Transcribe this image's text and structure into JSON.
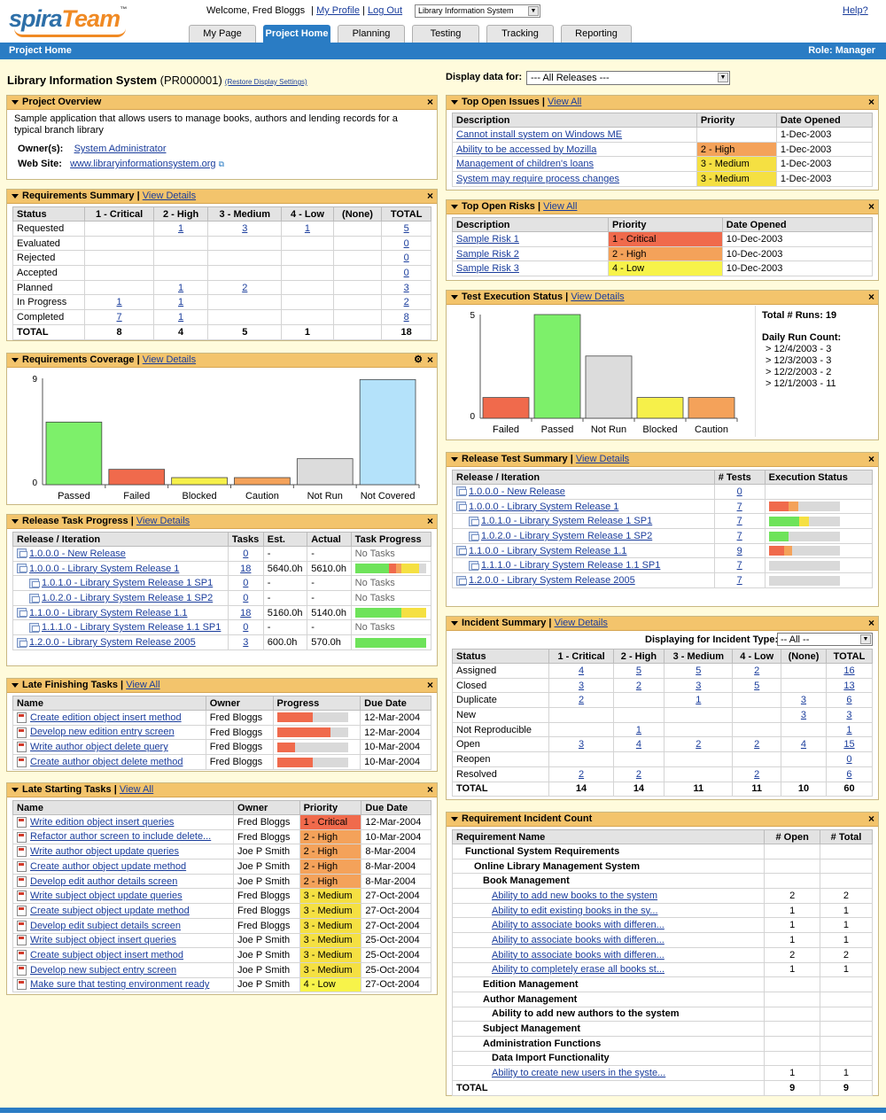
{
  "brand": {
    "a": "spira",
    "b": "Team",
    "tm": "™"
  },
  "header": {
    "welcome": "Welcome, Fred Bloggs",
    "my_profile": "My Profile",
    "log_out": "Log Out",
    "project_select": "Library Information System",
    "help": "Help?"
  },
  "tabs": [
    "My Page",
    "Project Home",
    "Planning",
    "Testing",
    "Tracking",
    "Reporting"
  ],
  "bar": {
    "left": "Project Home",
    "right": "Role: Manager"
  },
  "project": {
    "name": "Library Information System",
    "code": "(PR000001)",
    "restore": "(Restore Display Settings)"
  },
  "display": {
    "label": "Display data for:",
    "value": "--- All Releases ---"
  },
  "view_all": "View All",
  "view_details": "View Details",
  "overview": {
    "title": "Project Overview",
    "description": "Sample application that allows users to manage books, authors and lending records for a typical branch library",
    "owners_label": "Owner(s):",
    "owner": "System Administrator",
    "website_label": "Web Site:",
    "website": "www.libraryinformationsystem.org"
  },
  "req_summary": {
    "title": "Requirements Summary",
    "cols": [
      "Status",
      "1 - Critical",
      "2 - High",
      "3 - Medium",
      "4 - Low",
      "(None)",
      "TOTAL"
    ],
    "rows": [
      [
        "Requested",
        "",
        "1",
        "3",
        "1",
        "",
        "5"
      ],
      [
        "Evaluated",
        "",
        "",
        "",
        "",
        "",
        "0"
      ],
      [
        "Rejected",
        "",
        "",
        "",
        "",
        "",
        "0"
      ],
      [
        "Accepted",
        "",
        "",
        "",
        "",
        "",
        "0"
      ],
      [
        "Planned",
        "",
        "1",
        "2",
        "",
        "",
        "3"
      ],
      [
        "In Progress",
        "1",
        "1",
        "",
        "",
        "",
        "2"
      ],
      [
        "Completed",
        "7",
        "1",
        "",
        "",
        "",
        "8"
      ]
    ],
    "total": [
      "TOTAL",
      "8",
      "4",
      "5",
      "1",
      "",
      "18"
    ]
  },
  "req_coverage": {
    "title": "Requirements Coverage"
  },
  "release_tasks": {
    "title": "Release Task Progress",
    "cols": [
      "Release / Iteration",
      "Tasks",
      "Est.",
      "Actual",
      "Task Progress"
    ],
    "rows": [
      {
        "name": "1.0.0.0 - New Release",
        "level": 0,
        "tasks": "0",
        "est": "-",
        "actual": "-",
        "progress": "No Tasks"
      },
      {
        "name": "1.0.0.0 - Library System Release 1",
        "level": 0,
        "tasks": "18",
        "est": "5640.0h",
        "actual": "5610.0h",
        "segs": [
          {
            "c": "#6ee35a",
            "w": 0.48
          },
          {
            "c": "#f06a4c",
            "w": 0.1
          },
          {
            "c": "#f4a25a",
            "w": 0.08
          },
          {
            "c": "#f5e042",
            "w": 0.25
          }
        ]
      },
      {
        "name": "1.0.1.0 - Library System Release 1 SP1",
        "level": 1,
        "tasks": "0",
        "est": "-",
        "actual": "-",
        "progress": "No Tasks"
      },
      {
        "name": "1.0.2.0 - Library System Release 1 SP2",
        "level": 1,
        "tasks": "0",
        "est": "-",
        "actual": "-",
        "progress": "No Tasks"
      },
      {
        "name": "1.1.0.0 - Library System Release 1.1",
        "level": 0,
        "tasks": "18",
        "est": "5160.0h",
        "actual": "5140.0h",
        "segs": [
          {
            "c": "#6ee35a",
            "w": 0.66
          },
          {
            "c": "#f5e042",
            "w": 0.34
          }
        ]
      },
      {
        "name": "1.1.1.0 - Library System Release 1.1 SP1",
        "level": 1,
        "tasks": "0",
        "est": "-",
        "actual": "-",
        "progress": "No Tasks"
      },
      {
        "name": "1.2.0.0 - Library System Release 2005",
        "level": 0,
        "tasks": "3",
        "est": "600.0h",
        "actual": "570.0h",
        "segs": [
          {
            "c": "#6ee35a",
            "w": 1.0
          }
        ]
      }
    ]
  },
  "late_finishing": {
    "title": "Late Finishing Tasks",
    "cols": [
      "Name",
      "Owner",
      "Progress",
      "Due Date"
    ],
    "rows": [
      {
        "name": "Create edition object insert method",
        "owner": "Fred Bloggs",
        "progress": 0.5,
        "due": "12-Mar-2004"
      },
      {
        "name": "Develop new edition entry screen",
        "owner": "Fred Bloggs",
        "progress": 0.75,
        "due": "12-Mar-2004"
      },
      {
        "name": "Write author object delete query",
        "owner": "Fred Bloggs",
        "progress": 0.25,
        "due": "10-Mar-2004"
      },
      {
        "name": "Create author object delete method",
        "owner": "Fred Bloggs",
        "progress": 0.5,
        "due": "10-Mar-2004"
      }
    ]
  },
  "late_starting": {
    "title": "Late Starting Tasks",
    "cols": [
      "Name",
      "Owner",
      "Priority",
      "Due Date"
    ],
    "rows": [
      {
        "name": "Write edition object insert queries",
        "owner": "Fred Bloggs",
        "priority": "1 - Critical",
        "p": 1,
        "due": "12-Mar-2004"
      },
      {
        "name": "Refactor author screen to include delete...",
        "owner": "Fred Bloggs",
        "priority": "2 - High",
        "p": 2,
        "due": "10-Mar-2004"
      },
      {
        "name": "Write author object update queries",
        "owner": "Joe P Smith",
        "priority": "2 - High",
        "p": 2,
        "due": "8-Mar-2004"
      },
      {
        "name": "Create author object update method",
        "owner": "Joe P Smith",
        "priority": "2 - High",
        "p": 2,
        "due": "8-Mar-2004"
      },
      {
        "name": "Develop edit author details screen",
        "owner": "Joe P Smith",
        "priority": "2 - High",
        "p": 2,
        "due": "8-Mar-2004"
      },
      {
        "name": "Write subject object update queries",
        "owner": "Fred Bloggs",
        "priority": "3 - Medium",
        "p": 3,
        "due": "27-Oct-2004"
      },
      {
        "name": "Create subject object update method",
        "owner": "Fred Bloggs",
        "priority": "3 - Medium",
        "p": 3,
        "due": "27-Oct-2004"
      },
      {
        "name": "Develop edit subject details screen",
        "owner": "Fred Bloggs",
        "priority": "3 - Medium",
        "p": 3,
        "due": "27-Oct-2004"
      },
      {
        "name": "Write subject object insert queries",
        "owner": "Joe P Smith",
        "priority": "3 - Medium",
        "p": 3,
        "due": "25-Oct-2004"
      },
      {
        "name": "Create subject object insert method",
        "owner": "Joe P Smith",
        "priority": "3 - Medium",
        "p": 3,
        "due": "25-Oct-2004"
      },
      {
        "name": "Develop new subject entry screen",
        "owner": "Joe P Smith",
        "priority": "3 - Medium",
        "p": 3,
        "due": "25-Oct-2004"
      },
      {
        "name": "Make sure that testing environment ready",
        "owner": "Joe P Smith",
        "priority": "4 - Low",
        "p": 4,
        "due": "27-Oct-2004"
      }
    ]
  },
  "open_issues": {
    "title": "Top Open Issues",
    "cols": [
      "Description",
      "Priority",
      "Date Opened"
    ],
    "rows": [
      {
        "d": "Cannot install system on Windows ME",
        "pr": "",
        "p": 0,
        "date": "1-Dec-2003"
      },
      {
        "d": "Ability to be accessed by Mozilla",
        "pr": "2 - High",
        "p": 2,
        "date": "1-Dec-2003"
      },
      {
        "d": "Management of children's loans",
        "pr": "3 - Medium",
        "p": 3,
        "date": "1-Dec-2003"
      },
      {
        "d": "System may require process changes",
        "pr": "3 - Medium",
        "p": 3,
        "date": "1-Dec-2003"
      }
    ]
  },
  "open_risks": {
    "title": "Top Open Risks",
    "cols": [
      "Description",
      "Priority",
      "Date Opened"
    ],
    "rows": [
      {
        "d": "Sample Risk 1",
        "pr": "1 - Critical",
        "p": 1,
        "date": "10-Dec-2003"
      },
      {
        "d": "Sample Risk 2",
        "pr": "2 - High",
        "p": 2,
        "date": "10-Dec-2003"
      },
      {
        "d": "Sample Risk 3",
        "pr": "4 - Low",
        "p": 4,
        "date": "10-Dec-2003"
      }
    ]
  },
  "test_exec": {
    "title": "Test Execution Status",
    "total_runs": "Total # Runs: 19",
    "daily_label": "Daily Run Count:",
    "daily": [
      "> 12/4/2003 - 3",
      "> 12/3/2003 - 3",
      "> 12/2/2003 - 2",
      "> 12/1/2003 - 11"
    ]
  },
  "release_test": {
    "title": "Release Test Summary",
    "cols": [
      "Release / Iteration",
      "# Tests",
      "Execution Status"
    ],
    "rows": [
      {
        "name": "1.0.0.0 - New Release",
        "level": 0,
        "tests": "0",
        "segs": []
      },
      {
        "name": "1.0.0.0 - Library System Release 1",
        "level": 0,
        "tests": "7",
        "segs": [
          {
            "c": "#f06a4c",
            "w": 0.28
          },
          {
            "c": "#f4a25a",
            "w": 0.14
          }
        ]
      },
      {
        "name": "1.0.1.0 - Library System Release 1 SP1",
        "level": 1,
        "tests": "7",
        "segs": [
          {
            "c": "#6ee35a",
            "w": 0.43
          },
          {
            "c": "#f5e042",
            "w": 0.14
          }
        ]
      },
      {
        "name": "1.0.2.0 - Library System Release 1 SP2",
        "level": 1,
        "tests": "7",
        "segs": [
          {
            "c": "#6ee35a",
            "w": 0.28
          }
        ]
      },
      {
        "name": "1.1.0.0 - Library System Release 1.1",
        "level": 0,
        "tests": "9",
        "segs": [
          {
            "c": "#f06a4c",
            "w": 0.22
          },
          {
            "c": "#f4a25a",
            "w": 0.11
          }
        ]
      },
      {
        "name": "1.1.1.0 - Library System Release 1.1 SP1",
        "level": 1,
        "tests": "7",
        "segs": []
      },
      {
        "name": "1.2.0.0 - Library System Release 2005",
        "level": 0,
        "tests": "7",
        "segs": []
      }
    ]
  },
  "incident_summary": {
    "title": "Incident Summary",
    "type_label": "Displaying for Incident Type:",
    "type_value": "-- All --",
    "cols": [
      "Status",
      "1 - Critical",
      "2 - High",
      "3 - Medium",
      "4 - Low",
      "(None)",
      "TOTAL"
    ],
    "rows": [
      [
        "Assigned",
        "4",
        "5",
        "5",
        "2",
        "",
        "16"
      ],
      [
        "Closed",
        "3",
        "2",
        "3",
        "5",
        "",
        "13"
      ],
      [
        "Duplicate",
        "2",
        "",
        "1",
        "",
        "3",
        "6"
      ],
      [
        "New",
        "",
        "",
        "",
        "",
        "3",
        "3"
      ],
      [
        "Not Reproducible",
        "",
        "1",
        "",
        "",
        "",
        "1"
      ],
      [
        "Open",
        "3",
        "4",
        "2",
        "2",
        "4",
        "15"
      ],
      [
        "Reopen",
        "",
        "",
        "",
        "",
        "",
        "0"
      ],
      [
        "Resolved",
        "2",
        "2",
        "",
        "2",
        "",
        "6"
      ]
    ],
    "total": [
      "TOTAL",
      "14",
      "14",
      "11",
      "11",
      "10",
      "60"
    ]
  },
  "req_incident": {
    "title": "Requirement Incident Count",
    "cols": [
      "Requirement Name",
      "# Open",
      "# Total"
    ],
    "rows": [
      {
        "n": "Functional System Requirements",
        "lvl": 1,
        "b": true,
        "o": "",
        "t": ""
      },
      {
        "n": "Online Library Management System",
        "lvl": 2,
        "b": true,
        "o": "",
        "t": ""
      },
      {
        "n": "Book Management",
        "lvl": 3,
        "b": true,
        "o": "",
        "t": ""
      },
      {
        "n": "Ability to add new books to the system",
        "lvl": 4,
        "b": false,
        "o": "2",
        "t": "2"
      },
      {
        "n": "Ability to edit existing books in the sy...",
        "lvl": 4,
        "b": false,
        "o": "1",
        "t": "1"
      },
      {
        "n": "Ability to associate books with differen...",
        "lvl": 4,
        "b": false,
        "o": "1",
        "t": "1"
      },
      {
        "n": "Ability to associate books with differen...",
        "lvl": 4,
        "b": false,
        "o": "1",
        "t": "1"
      },
      {
        "n": "Ability to associate books with differen...",
        "lvl": 4,
        "b": false,
        "o": "2",
        "t": "2"
      },
      {
        "n": "Ability to completely erase all books st...",
        "lvl": 4,
        "b": false,
        "o": "1",
        "t": "1"
      },
      {
        "n": "Edition Management",
        "lvl": 3,
        "b": true,
        "o": "",
        "t": ""
      },
      {
        "n": "Author Management",
        "lvl": 3,
        "b": true,
        "o": "",
        "t": ""
      },
      {
        "n": "Ability to add new authors to the system",
        "lvl": 4,
        "b": true,
        "o": "",
        "t": ""
      },
      {
        "n": "Subject Management",
        "lvl": 3,
        "b": true,
        "o": "",
        "t": ""
      },
      {
        "n": "Administration Functions",
        "lvl": 3,
        "b": true,
        "o": "",
        "t": ""
      },
      {
        "n": "Data Import Functionality",
        "lvl": 4,
        "b": true,
        "o": "",
        "t": ""
      },
      {
        "n": "Ability to create new users in the syste...",
        "lvl": 4,
        "b": false,
        "o": "1",
        "t": "1"
      }
    ],
    "total": [
      "TOTAL",
      "9",
      "9"
    ]
  },
  "chart_data": [
    {
      "type": "bar",
      "categories": [
        "Passed",
        "Failed",
        "Blocked",
        "Caution",
        "Not Run",
        "Not Covered"
      ],
      "values": [
        5.3,
        1.3,
        0.6,
        0.6,
        2.2,
        8.9
      ],
      "colors": [
        "#7df06a",
        "#f06a4c",
        "#f6f04a",
        "#f4a25a",
        "#dcdcdc",
        "#b4e2fa"
      ],
      "ylim": [
        0,
        9
      ],
      "yticks": [
        "0",
        "9"
      ]
    },
    {
      "type": "bar",
      "categories": [
        "Failed",
        "Passed",
        "Not Run",
        "Blocked",
        "Caution"
      ],
      "values": [
        1.0,
        5.0,
        3.0,
        1.0,
        1.0
      ],
      "colors": [
        "#f06a4c",
        "#7df06a",
        "#dcdcdc",
        "#f6f04a",
        "#f4a25a"
      ],
      "ylim": [
        0,
        5
      ],
      "yticks": [
        "0",
        "5"
      ]
    }
  ]
}
